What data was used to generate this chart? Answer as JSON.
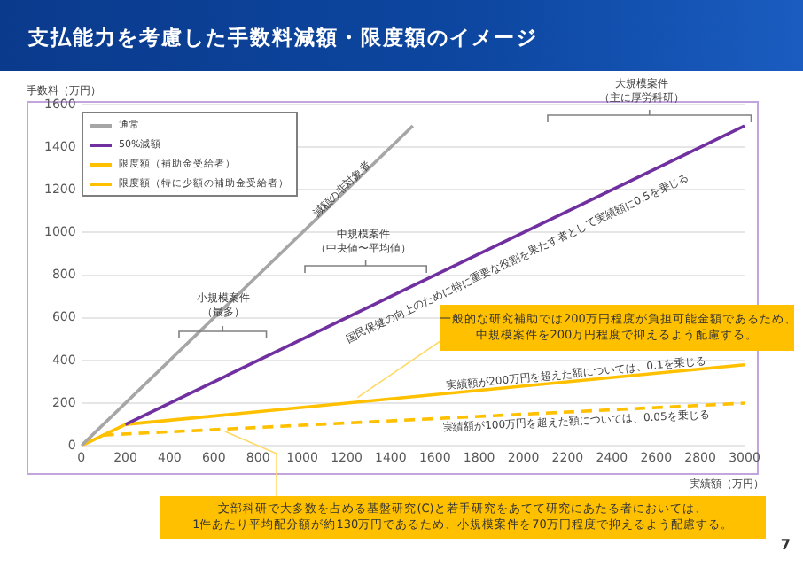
{
  "chart_data": {
    "type": "line",
    "title": "支払能力を考慮した手数料減額・限度額のイメージ",
    "xlabel": "実績額（万円）",
    "ylabel": "手数料（万円）",
    "series": [
      {
        "name": "通常",
        "color": "#a6a6a6",
        "x": [
          0,
          1500
        ],
        "values": [
          0,
          1500
        ]
      },
      {
        "name": "50%減額",
        "color": "#7030a0",
        "x": [
          200,
          3000
        ],
        "values": [
          100,
          1500
        ]
      },
      {
        "name": "限度額（補助金受給者）",
        "color": "#ffc000",
        "x": [
          0,
          200,
          3000
        ],
        "values": [
          0,
          100,
          380
        ]
      },
      {
        "name": "限度額（特に少額の補助金受給者）",
        "color": "#ffc000",
        "line_style": "dashed",
        "x": [
          100,
          3000
        ],
        "values": [
          50,
          200
        ]
      }
    ],
    "xlim": [
      0,
      3000
    ],
    "xticks": [
      0,
      200,
      400,
      600,
      800,
      1000,
      1200,
      1400,
      1600,
      1800,
      2000,
      2200,
      2400,
      2600,
      2800,
      3000
    ],
    "ylim": [
      0,
      1600
    ],
    "yticks": [
      0,
      200,
      400,
      600,
      800,
      1000,
      1200,
      1400,
      1600
    ],
    "grid": "y",
    "legend": "top left",
    "marker": "none",
    "line_style": "solid",
    "annotations": [
      "大規模案件（主に厚労科研）",
      "中規模案件（中央値〜平均値）",
      "小規模案件（最多）",
      "減額の非対象者",
      "国民保健の向上のために特に重要な役割を果たす者として実績額に0.5を乗じる",
      "実績額が200万円を超えた額については、0.1を乗じる",
      "実績額が100万円を超えた額については、0.05を乗じる",
      {
        "text": "一般的な研究補助では200万円程度が負担可能金額であるため、中規模案件を200万円程度で抑えるよう配慮する。",
        "x": 1250,
        "y": 227
      },
      {
        "text": "文部科研で大多数を占める基盤研究(C)と若手研究をあてて研究にあたる者においては、1件あたり平均配分額が約130万円であるため、小規模案件を70万円程度で抑えるよう配慮する。",
        "x": 650,
        "y": 67
      },
      "7"
    ]
  }
}
